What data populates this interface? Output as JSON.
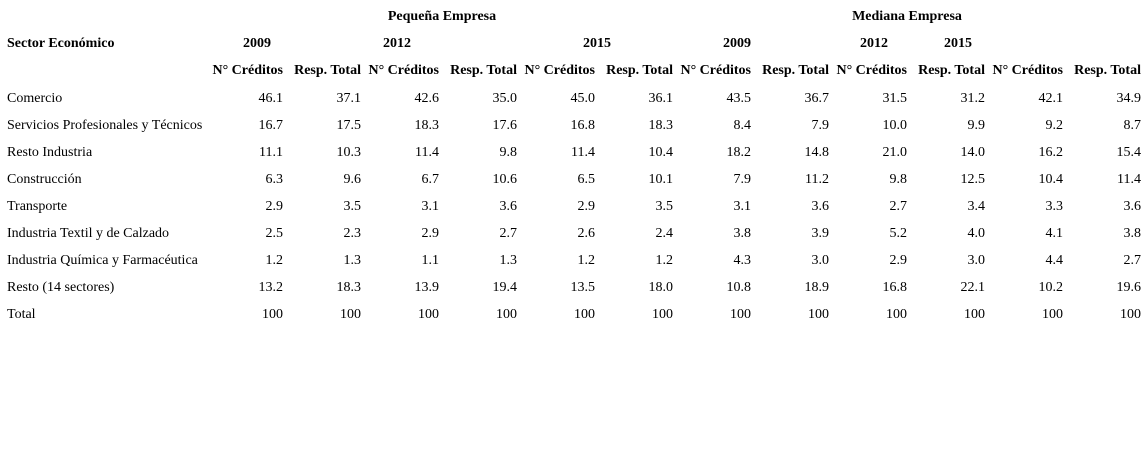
{
  "chart_data": {
    "type": "table",
    "row_label_header": "Sector Económico",
    "groups": [
      {
        "label": "Pequeña Empresa",
        "years": [
          "2009",
          "2012",
          "2015"
        ]
      },
      {
        "label": "Mediana Empresa",
        "years": [
          "2009",
          "2012",
          "2015"
        ]
      }
    ],
    "measure_headers": [
      "N° Créditos",
      "Resp. Total"
    ],
    "rows": [
      {
        "label": "Comercio",
        "values": [
          "46.1",
          "37.1",
          "42.6",
          "35.0",
          "45.0",
          "36.1",
          "43.5",
          "36.7",
          "31.5",
          "31.2",
          "42.1",
          "34.9"
        ]
      },
      {
        "label": "Servicios Profesionales y Técnicos",
        "values": [
          "16.7",
          "17.5",
          "18.3",
          "17.6",
          "16.8",
          "18.3",
          "8.4",
          "7.9",
          "10.0",
          "9.9",
          "9.2",
          "8.7"
        ]
      },
      {
        "label": "Resto Industria",
        "values": [
          "11.1",
          "10.3",
          "11.4",
          "9.8",
          "11.4",
          "10.4",
          "18.2",
          "14.8",
          "21.0",
          "14.0",
          "16.2",
          "15.4"
        ]
      },
      {
        "label": "Construcción",
        "values": [
          "6.3",
          "9.6",
          "6.7",
          "10.6",
          "6.5",
          "10.1",
          "7.9",
          "11.2",
          "9.8",
          "12.5",
          "10.4",
          "11.4"
        ]
      },
      {
        "label": "Transporte",
        "values": [
          "2.9",
          "3.5",
          "3.1",
          "3.6",
          "2.9",
          "3.5",
          "3.1",
          "3.6",
          "2.7",
          "3.4",
          "3.3",
          "3.6"
        ]
      },
      {
        "label": "Industria Textil y de Calzado",
        "values": [
          "2.5",
          "2.3",
          "2.9",
          "2.7",
          "2.6",
          "2.4",
          "3.8",
          "3.9",
          "5.2",
          "4.0",
          "4.1",
          "3.8"
        ]
      },
      {
        "label": "Industria Química y Farmacéutica",
        "values": [
          "1.2",
          "1.3",
          "1.1",
          "1.3",
          "1.2",
          "1.2",
          "4.3",
          "3.0",
          "2.9",
          "3.0",
          "4.4",
          "2.7"
        ]
      },
      {
        "label": "Resto (14 sectores)",
        "values": [
          "13.2",
          "18.3",
          "13.9",
          "19.4",
          "13.5",
          "18.0",
          "10.8",
          "18.9",
          "16.8",
          "22.1",
          "10.2",
          "19.6"
        ]
      },
      {
        "label": "Total",
        "values": [
          "100",
          "100",
          "100",
          "100",
          "100",
          "100",
          "100",
          "100",
          "100",
          "100",
          "100",
          "100"
        ]
      }
    ]
  }
}
